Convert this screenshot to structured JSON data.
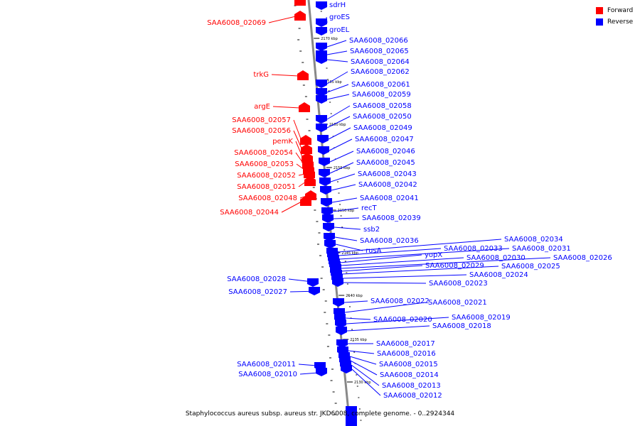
{
  "legend": {
    "forward_label": "Forward",
    "reverse_label": "Reverse",
    "forward_color": "#ff0000",
    "reverse_color": "#0000ff"
  },
  "caption": "Staphylococcus aureus subsp. aureus str. JKD6008, complete genome. - 0..2924344",
  "scale_marks": [
    "2170 kbp",
    "2165 kbp",
    "2160 kbp",
    "2155 kbp",
    "2150 kbp",
    "2145 kbp",
    "2140 kbp",
    "2135 kbp",
    "2130 kbp"
  ],
  "forward_genes": [
    "SAA6008_02069",
    "trkG",
    "argE",
    "SAA6008_02057",
    "SAA6008_02056",
    "pemK",
    "SAA6008_02054",
    "SAA6008_02053",
    "SAA6008_02052",
    "SAA6008_02051",
    "SAA6008_02048",
    "SAA6008_02044"
  ],
  "reverse_genes": [
    "sdrH",
    "groES",
    "groEL",
    "SAA6008_02066",
    "SAA6008_02065",
    "SAA6008_02064",
    "SAA6008_02062",
    "SAA6008_02061",
    "SAA6008_02059",
    "SAA6008_02058",
    "SAA6008_02050",
    "SAA6008_02049",
    "SAA6008_02047",
    "SAA6008_02046",
    "SAA6008_02045",
    "SAA6008_02043",
    "SAA6008_02042",
    "SAA6008_02041",
    "recT",
    "SAA6008_02039",
    "ssb2",
    "SAA6008_02036",
    "rusA",
    "SAA6008_02034",
    "SAA6008_02033",
    "SAA6008_02031",
    "yopX",
    "SAA6008_02030",
    "SAA6008_02026",
    "SAA6008_02029",
    "SAA6008_02025",
    "SAA6008_02024",
    "SAA6008_02023",
    "SAA6008_02028",
    "SAA6008_02027",
    "SAA6008_02022",
    "SAA6008_02021",
    "SAA6008_02020",
    "SAA6008_02019",
    "SAA6008_02018",
    "SAA6008_02017",
    "SAA6008_02016",
    "SAA6008_02015",
    "SAA6008_02014",
    "SAA6008_02013",
    "SAA6008_02012",
    "SAA6008_02011",
    "SAA6008_02010"
  ]
}
